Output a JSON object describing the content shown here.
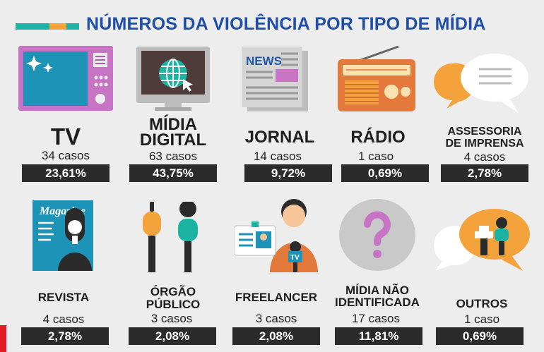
{
  "title": "NÚMEROS DA VIOLÊNCIA POR TIPO DE MÍDIA",
  "colors": {
    "teal": "#1cb3a3",
    "orange": "#f4a23c",
    "blue": "#1f4ea8",
    "dark": "#2b2b2b",
    "red": "#e01b24"
  },
  "items": [
    {
      "name": "TV",
      "count": "34 casos",
      "pct": "23,61%",
      "icon": "tv-icon"
    },
    {
      "name1": "MÍDIA",
      "name2": "DIGITAL",
      "count": "63 casos",
      "pct": "43,75%",
      "icon": "digital-media-icon"
    },
    {
      "name": "JORNAL",
      "count": "14 casos",
      "pct": "9,72%",
      "icon": "newspaper-icon",
      "icon_text": "NEWS"
    },
    {
      "name": "RÁDIO",
      "count": "1 caso",
      "pct": "0,69%",
      "icon": "radio-icon"
    },
    {
      "name1": "ASSESSORIA",
      "name2": "DE IMPRENSA",
      "count": "4 casos",
      "pct": "2,78%",
      "icon": "press-office-icon"
    },
    {
      "name": "REVISTA",
      "count": "4 casos",
      "pct": "2,78%",
      "icon": "magazine-icon",
      "icon_text": "Magazine"
    },
    {
      "name1": "ÓRGÃO",
      "name2": "PÚBLICO",
      "count": "3 casos",
      "pct": "2,08%",
      "icon": "public-agency-icon"
    },
    {
      "name": "FREELANCER",
      "count": "3 casos",
      "pct": "2,08%",
      "icon": "freelancer-icon",
      "icon_text": "TV"
    },
    {
      "name1": "MÍDIA NÃO",
      "name2": "IDENTIFICADA",
      "count": "17 casos",
      "pct": "11,81%",
      "icon": "unidentified-media-icon"
    },
    {
      "name": "OUTROS",
      "count": "1 caso",
      "pct": "0,69%",
      "icon": "others-icon"
    }
  ]
}
